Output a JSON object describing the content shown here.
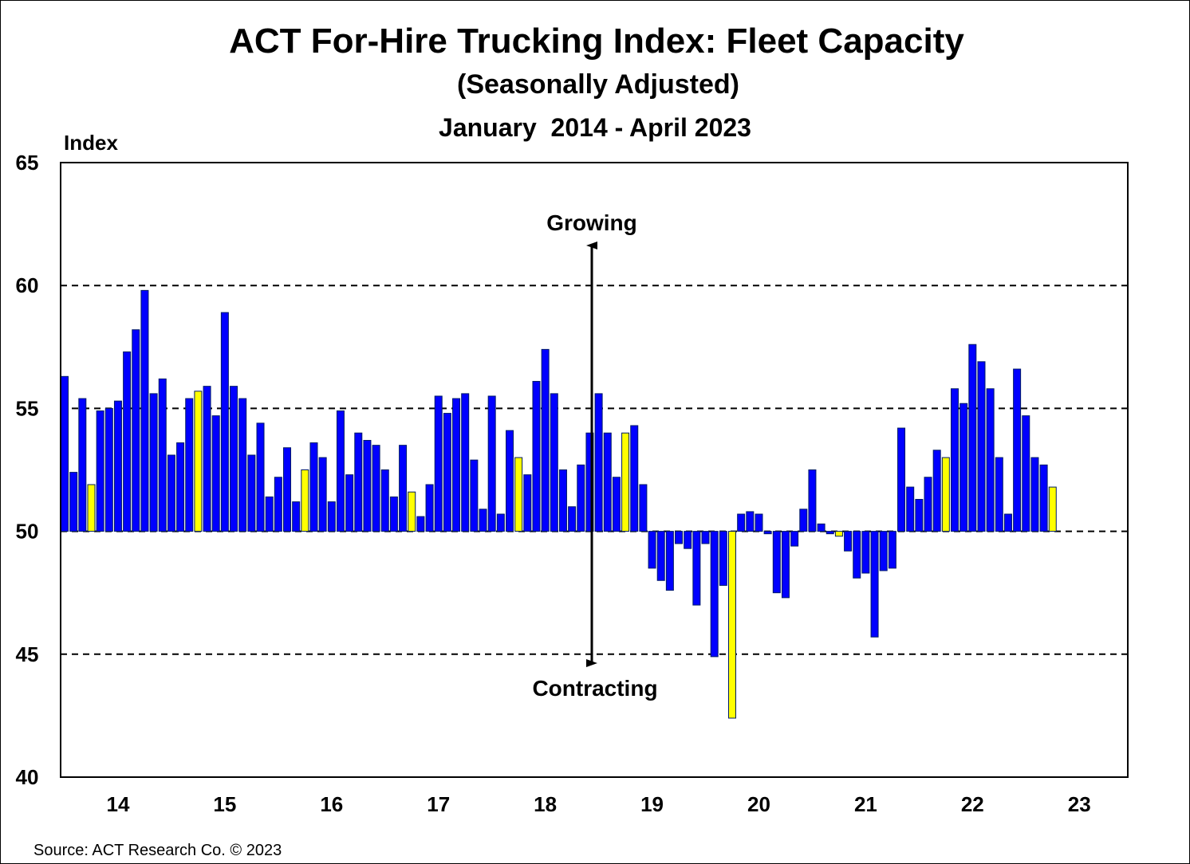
{
  "chart_data": {
    "type": "bar",
    "title": "ACT For-Hire Trucking Index: Fleet Capacity",
    "subtitle": "(Seasonally Adjusted)",
    "period": "January  2014 - April 2023",
    "ylabel": "Index",
    "ylim": [
      40,
      65
    ],
    "yticks": [
      40,
      45,
      50,
      55,
      60,
      65
    ],
    "gridlines": [
      45,
      50,
      55,
      60
    ],
    "baseline": 50,
    "xtick_labels": [
      "14",
      "15",
      "16",
      "17",
      "18",
      "19",
      "20",
      "21",
      "22",
      "23"
    ],
    "start": "2014-01",
    "frequency": "monthly",
    "highlight_month": "April",
    "colors": {
      "bar": "#0000ff",
      "highlight": "#ffff00",
      "outline": "#001a66"
    },
    "values": [
      56.3,
      52.4,
      55.4,
      51.9,
      54.9,
      55.0,
      55.3,
      57.3,
      58.2,
      59.8,
      55.6,
      56.2,
      53.1,
      53.6,
      55.4,
      55.7,
      55.9,
      54.7,
      58.9,
      55.9,
      55.4,
      53.1,
      54.4,
      51.4,
      52.2,
      53.4,
      51.2,
      52.5,
      53.6,
      53.0,
      51.2,
      54.9,
      52.3,
      54.0,
      53.7,
      53.5,
      52.5,
      51.4,
      53.5,
      51.6,
      50.6,
      51.9,
      55.5,
      54.8,
      55.4,
      55.6,
      52.9,
      50.9,
      55.5,
      50.7,
      54.1,
      53.0,
      52.3,
      56.1,
      57.4,
      55.6,
      52.5,
      51.0,
      52.7,
      54.0,
      55.6,
      54.0,
      52.2,
      54.0,
      54.3,
      51.9,
      48.5,
      48.0,
      47.6,
      49.5,
      49.3,
      47.0,
      49.5,
      44.9,
      47.8,
      42.4,
      50.7,
      50.8,
      50.7,
      49.9,
      47.5,
      47.3,
      49.4,
      50.9,
      52.5,
      50.3,
      49.9,
      49.8,
      49.2,
      48.1,
      48.3,
      45.7,
      48.4,
      48.5,
      54.2,
      51.8,
      51.3,
      52.2,
      53.3,
      53.0,
      55.8,
      55.2,
      57.6,
      56.9,
      55.8,
      53.0,
      50.7,
      56.6,
      54.7,
      53.0,
      52.7,
      51.8
    ],
    "annotations": {
      "up": "Growing",
      "down": "Contracting"
    },
    "source": "Source: ACT Research Co. © 2023"
  }
}
